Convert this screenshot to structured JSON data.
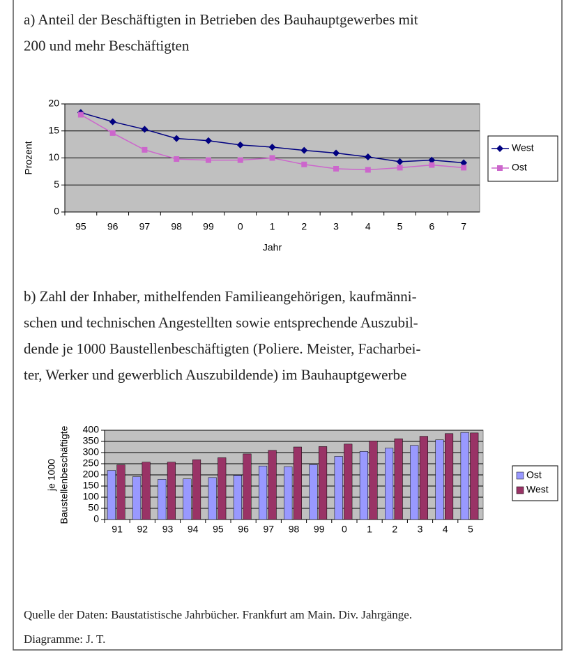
{
  "chart_data": [
    {
      "type": "line",
      "title": [
        "a) Anteil der Beschäftigten in Betrieben des Bauhauptgewerbes mit",
        "200 und mehr Beschäftigten"
      ],
      "categories": [
        "95",
        "96",
        "97",
        "98",
        "99",
        "0",
        "1",
        "2",
        "3",
        "4",
        "5",
        "6",
        "7"
      ],
      "series": [
        {
          "name": "West",
          "color": "#000080",
          "values": [
            18.4,
            16.7,
            15.3,
            13.6,
            13.2,
            12.4,
            12.0,
            11.4,
            10.9,
            10.2,
            9.3,
            9.6,
            9.1
          ]
        },
        {
          "name": "Ost",
          "color": "#cc66cc",
          "values": [
            18.0,
            14.6,
            11.5,
            9.8,
            9.6,
            9.6,
            10.0,
            8.8,
            8.0,
            7.8,
            8.2,
            8.7,
            8.2
          ]
        }
      ],
      "ylim": [
        0,
        20
      ],
      "yticks": [
        0,
        5,
        10,
        15,
        20
      ],
      "ylabel": "Prozent",
      "xlabel": "Jahr",
      "grid": true,
      "background": "#c0c0c0",
      "legend": "right"
    },
    {
      "type": "bar",
      "title": [
        "b) Zahl der Inhaber, mithelfenden Familieangehörigen, kaufmänni-",
        "schen und technischen Angestellten sowie entsprechende Auszubil-",
        "dende je 1000 Baustellenbeschäftigten (Poliere. Meister, Facharbei-",
        "ter, Werker und gewerblich Auszubildende) im Bauhauptgewerbe"
      ],
      "categories": [
        "91",
        "92",
        "93",
        "94",
        "95",
        "96",
        "97",
        "98",
        "99",
        "0",
        "1",
        "2",
        "3",
        "4",
        "5"
      ],
      "series": [
        {
          "name": "Ost",
          "color": "#9999ff",
          "values": [
            220,
            192,
            180,
            182,
            188,
            198,
            240,
            237,
            246,
            283,
            305,
            320,
            332,
            357,
            390
          ]
        },
        {
          "name": "West",
          "color": "#993366",
          "values": [
            245,
            257,
            257,
            268,
            277,
            294,
            310,
            325,
            327,
            338,
            352,
            362,
            373,
            385,
            388
          ]
        }
      ],
      "ylim": [
        0,
        400
      ],
      "yticks": [
        0,
        50,
        100,
        150,
        200,
        250,
        300,
        350,
        400
      ],
      "ylabel": [
        "je 1000",
        "Baustellenbeschäftigte"
      ],
      "grid": true,
      "background": "#c0c0c0",
      "legend": "right"
    }
  ],
  "source": [
    "Quelle der Daten: Baustatistische Jahrbücher. Frankfurt am Main. Div. Jahrgänge.",
    "Diagramme: J. T."
  ]
}
